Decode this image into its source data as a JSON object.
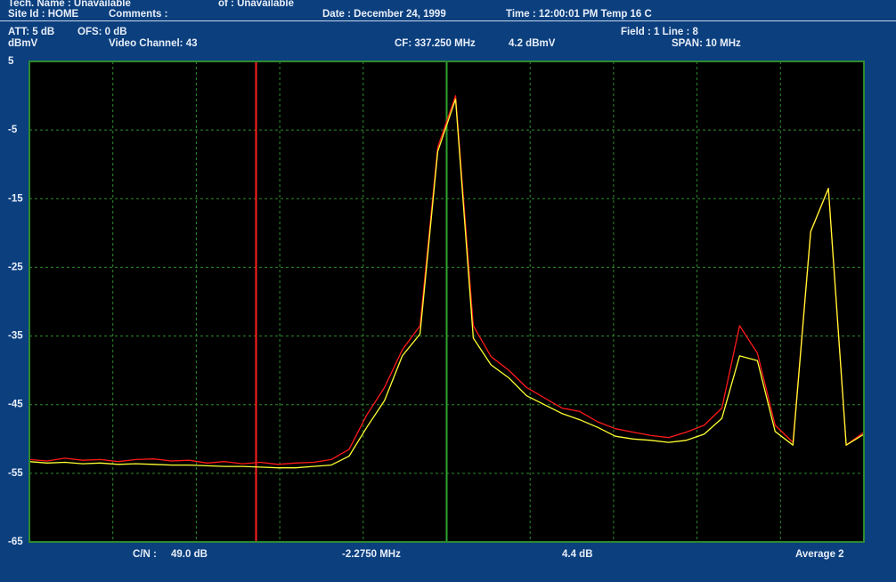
{
  "header": {
    "tech_name": "Tech. Name : Unavailable",
    "of": "of : Unavailable",
    "site_id": "Site Id : HOME",
    "comments": "Comments :",
    "date": "Date : December 24, 1999",
    "time": "Time : 12:00:01 PM Temp 16 C",
    "att": "ATT:  5 dB",
    "ofs": "OFS:   0 dB",
    "field": "Field : 1 Line : 8",
    "video_channel": "Video Channel:  43",
    "cf": "CF:  337.250 MHz",
    "cf_level": "4.2 dBmV",
    "span": "SPAN:  10 MHz"
  },
  "footer": {
    "cn_label": "C/N :",
    "cn_value": "49.0 dB",
    "marker_offset": "-2.2750 MHz",
    "marker_level": "4.4 dB",
    "average": "Average 2"
  },
  "chart_data": {
    "type": "line",
    "y_label": "dBmV",
    "ylim": [
      -65,
      5
    ],
    "yticks": [
      5,
      -5,
      -15,
      -25,
      -35,
      -45,
      -55,
      -65
    ],
    "grid": true,
    "series": [
      {
        "color": "#ff1a1a",
        "values": [
          -53.0,
          -53.2,
          -52.8,
          -53.1,
          -53.0,
          -53.3,
          -53.0,
          -52.9,
          -53.2,
          -53.1,
          -53.5,
          -53.3,
          -53.6,
          -53.4,
          -53.7,
          -53.5,
          -53.4,
          -53.0,
          -51.5,
          -46.5,
          -42.5,
          -37.0,
          -33.5,
          -7.5,
          0.0,
          -33.5,
          -38.0,
          -40.0,
          -42.5,
          -44.0,
          -45.5,
          -46.0,
          -47.5,
          -48.5,
          -49.0,
          -49.5,
          -49.8,
          -49.0,
          -48.0,
          -45.5,
          -33.5,
          -37.5,
          -48.0,
          -50.5,
          -19.8,
          -13.5,
          -50.9,
          -49.0
        ]
      },
      {
        "color": "#ffff33",
        "values": [
          -53.3,
          -53.5,
          -53.4,
          -53.6,
          -53.5,
          -53.7,
          -53.6,
          -53.7,
          -53.8,
          -53.8,
          -53.9,
          -54.0,
          -54.0,
          -54.1,
          -54.2,
          -54.2,
          -54.0,
          -53.8,
          -52.5,
          -48.3,
          -44.4,
          -37.9,
          -34.7,
          -8.1,
          -0.5,
          -35.3,
          -39.2,
          -41.1,
          -43.7,
          -45.0,
          -46.3,
          -47.2,
          -48.3,
          -49.6,
          -50.0,
          -50.2,
          -50.5,
          -50.2,
          -49.3,
          -47.0,
          -37.9,
          -38.6,
          -48.9,
          -50.9,
          -19.8,
          -13.5,
          -50.9,
          -49.3
        ]
      }
    ]
  }
}
